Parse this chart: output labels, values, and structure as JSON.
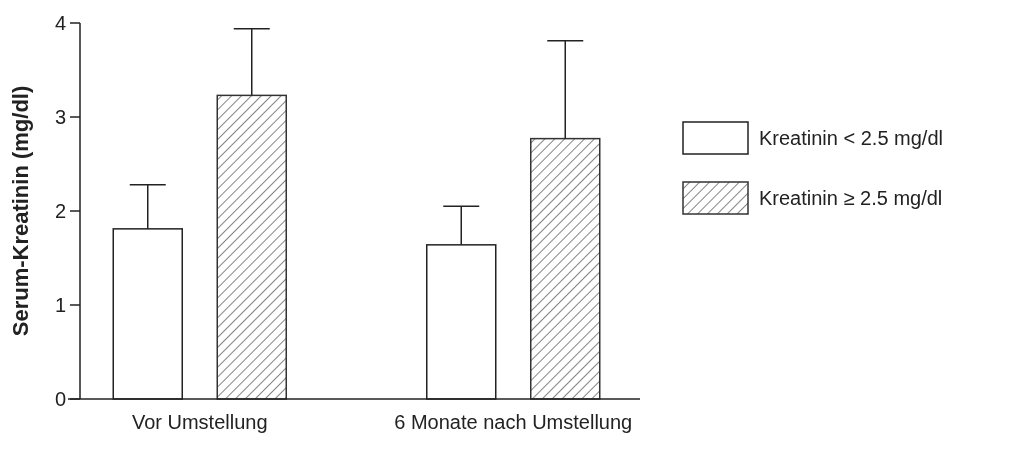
{
  "chart_data": {
    "type": "bar",
    "ylabel": "Serum-Kreatinin (mg/dl)",
    "categories": [
      "Vor Umstellung",
      "6 Monate nach Umstellung"
    ],
    "series": [
      {
        "name": "Kreatinin < 2.5 mg/dl",
        "color": "#ffffff",
        "values": [
          1.81,
          1.64
        ],
        "errors": [
          0.47,
          0.41
        ]
      },
      {
        "name": "Kreatinin ≥ 2.5 mg/dl",
        "color": "#333333",
        "values": [
          3.23,
          2.77
        ],
        "errors": [
          0.71,
          1.04
        ]
      }
    ],
    "ylim": [
      0,
      4
    ],
    "yticks": [
      0,
      1,
      2,
      3,
      4
    ],
    "legend": "right"
  }
}
